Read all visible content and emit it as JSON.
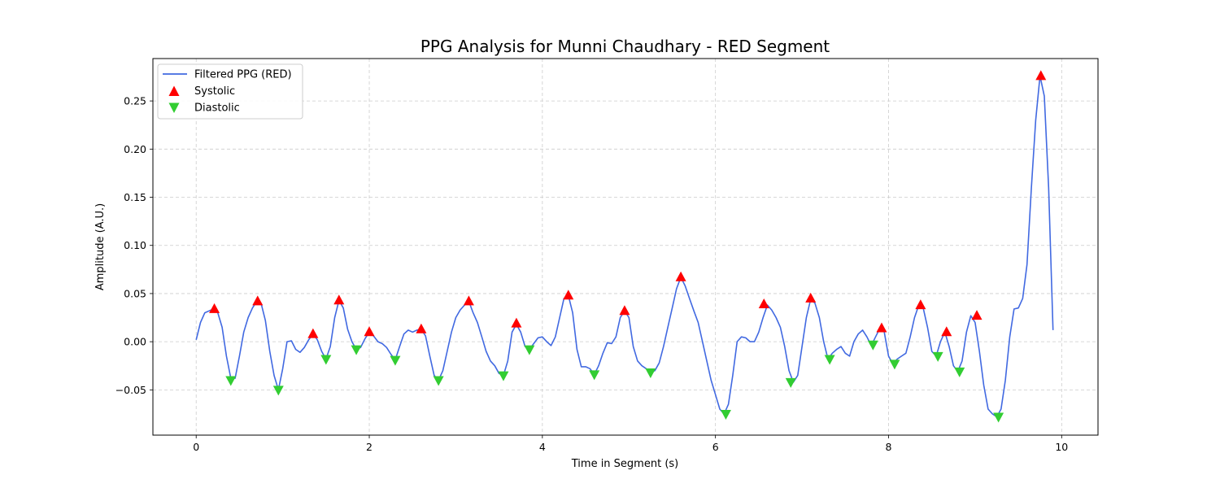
{
  "chart_data": {
    "type": "line",
    "title": "PPG Analysis for Munni Chaudhary - RED Segment",
    "xlabel": "Time in Segment (s)",
    "ylabel": "Amplitude (A.U.)",
    "xlim": [
      -0.5,
      10.42
    ],
    "ylim": [
      -0.097,
      0.294
    ],
    "grid": true,
    "legend_position": "top-left",
    "x_ticks": [
      0,
      2,
      4,
      6,
      8,
      10
    ],
    "x_tick_labels": [
      "0",
      "2",
      "4",
      "6",
      "8",
      "10"
    ],
    "y_ticks": [
      -0.05,
      0.0,
      0.05,
      0.1,
      0.15,
      0.2,
      0.25
    ],
    "y_tick_labels": [
      "−0.05",
      "0.00",
      "0.05",
      "0.10",
      "0.15",
      "0.20",
      "0.25"
    ],
    "colors": {
      "line": "#4169e1",
      "systolic": "#ff0000",
      "diastolic": "#32cd32",
      "grid": "#cccccc"
    },
    "series": [
      {
        "name": "Filtered PPG (RED)",
        "kind": "line",
        "x": [
          0.0,
          0.05,
          0.1,
          0.15,
          0.2,
          0.25,
          0.3,
          0.35,
          0.4,
          0.45,
          0.5,
          0.55,
          0.6,
          0.65,
          0.7,
          0.75,
          0.8,
          0.85,
          0.9,
          0.95,
          1.0,
          1.05,
          1.1,
          1.15,
          1.2,
          1.25,
          1.3,
          1.35,
          1.4,
          1.45,
          1.5,
          1.55,
          1.6,
          1.65,
          1.7,
          1.75,
          1.8,
          1.85,
          1.9,
          1.95,
          2.0,
          2.05,
          2.1,
          2.15,
          2.2,
          2.25,
          2.3,
          2.35,
          2.4,
          2.45,
          2.5,
          2.55,
          2.6,
          2.65,
          2.7,
          2.75,
          2.8,
          2.85,
          2.9,
          2.95,
          3.0,
          3.05,
          3.1,
          3.15,
          3.2,
          3.25,
          3.3,
          3.35,
          3.4,
          3.45,
          3.5,
          3.55,
          3.6,
          3.65,
          3.7,
          3.75,
          3.8,
          3.85,
          3.9,
          3.95,
          4.0,
          4.05,
          4.1,
          4.15,
          4.2,
          4.25,
          4.3,
          4.35,
          4.4,
          4.45,
          4.5,
          4.55,
          4.6,
          4.65,
          4.7,
          4.75,
          4.8,
          4.85,
          4.9,
          4.95,
          5.0,
          5.05,
          5.1,
          5.15,
          5.2,
          5.25,
          5.3,
          5.35,
          5.4,
          5.45,
          5.5,
          5.55,
          5.6,
          5.65,
          5.7,
          5.75,
          5.8,
          5.85,
          5.9,
          5.95,
          6.0,
          6.05,
          6.1,
          6.15,
          6.2,
          6.25,
          6.3,
          6.35,
          6.4,
          6.45,
          6.5,
          6.55,
          6.6,
          6.65,
          6.7,
          6.75,
          6.8,
          6.85,
          6.9,
          6.95,
          7.0,
          7.05,
          7.1,
          7.15,
          7.2,
          7.25,
          7.3,
          7.35,
          7.4,
          7.45,
          7.5,
          7.55,
          7.6,
          7.65,
          7.7,
          7.75,
          7.8,
          7.85,
          7.9,
          7.95,
          8.0,
          8.05,
          8.1,
          8.15,
          8.2,
          8.25,
          8.3,
          8.35,
          8.4,
          8.45,
          8.5,
          8.55,
          8.6,
          8.65,
          8.7,
          8.75,
          8.8,
          8.85,
          8.9,
          8.95,
          9.0,
          9.05,
          9.1,
          9.15,
          9.2,
          9.25,
          9.3,
          9.35,
          9.4,
          9.45,
          9.5,
          9.55,
          9.6,
          9.65,
          9.7,
          9.75,
          9.8,
          9.85,
          9.9
        ],
        "y": [
          0.002,
          0.02,
          0.03,
          0.032,
          0.034,
          0.03,
          0.015,
          -0.015,
          -0.038,
          -0.038,
          -0.015,
          0.01,
          0.025,
          0.035,
          0.042,
          0.04,
          0.022,
          -0.01,
          -0.035,
          -0.05,
          -0.028,
          0.0,
          0.001,
          -0.008,
          -0.011,
          -0.006,
          0.002,
          0.008,
          0.002,
          -0.01,
          -0.018,
          -0.005,
          0.025,
          0.043,
          0.035,
          0.013,
          0.0,
          -0.008,
          -0.006,
          0.003,
          0.01,
          0.006,
          0.0,
          -0.002,
          -0.006,
          -0.013,
          -0.019,
          -0.005,
          0.008,
          0.012,
          0.01,
          0.012,
          0.013,
          0.006,
          -0.015,
          -0.035,
          -0.04,
          -0.03,
          -0.01,
          0.01,
          0.025,
          0.033,
          0.038,
          0.042,
          0.03,
          0.02,
          0.005,
          -0.01,
          -0.02,
          -0.025,
          -0.033,
          -0.035,
          -0.02,
          0.01,
          0.018,
          0.01,
          -0.005,
          -0.008,
          -0.002,
          0.004,
          0.005,
          0.0,
          -0.004,
          0.005,
          0.025,
          0.045,
          0.048,
          0.03,
          -0.008,
          -0.026,
          -0.026,
          -0.028,
          -0.034,
          -0.025,
          -0.012,
          -0.001,
          -0.002,
          0.005,
          0.025,
          0.032,
          0.025,
          -0.005,
          -0.02,
          -0.025,
          -0.028,
          -0.032,
          -0.03,
          -0.022,
          -0.005,
          0.015,
          0.035,
          0.055,
          0.067,
          0.058,
          0.045,
          0.032,
          0.02,
          0.0,
          -0.02,
          -0.04,
          -0.055,
          -0.07,
          -0.075,
          -0.065,
          -0.035,
          0.0,
          0.005,
          0.004,
          0.0,
          0.0,
          0.01,
          0.025,
          0.038,
          0.033,
          0.025,
          0.015,
          -0.005,
          -0.03,
          -0.042,
          -0.035,
          -0.005,
          0.025,
          0.044,
          0.04,
          0.025,
          0.0,
          -0.018,
          -0.012,
          -0.008,
          -0.005,
          -0.012,
          -0.015,
          0.0,
          0.008,
          0.012,
          0.005,
          -0.004,
          0.005,
          0.014,
          0.01,
          -0.015,
          -0.023,
          -0.018,
          -0.015,
          -0.012,
          0.005,
          0.025,
          0.038,
          0.035,
          0.015,
          -0.01,
          -0.015,
          0.0,
          0.01,
          -0.005,
          -0.025,
          -0.031,
          -0.02,
          0.01,
          0.027,
          0.02,
          -0.01,
          -0.045,
          -0.07,
          -0.075,
          -0.078,
          -0.07,
          -0.04,
          0.005,
          0.034,
          0.035,
          0.045,
          0.08,
          0.16,
          0.23,
          0.276,
          0.255,
          0.16,
          0.012
        ]
      },
      {
        "name": "Systolic",
        "kind": "marker-up",
        "x": [
          0.21,
          0.71,
          1.35,
          1.65,
          2.0,
          2.6,
          3.15,
          3.7,
          4.3,
          4.95,
          5.6,
          6.56,
          7.1,
          7.92,
          8.37,
          8.67,
          9.02,
          9.76
        ],
        "y": [
          0.034,
          0.042,
          0.008,
          0.043,
          0.01,
          0.013,
          0.042,
          0.019,
          0.048,
          0.032,
          0.067,
          0.039,
          0.045,
          0.014,
          0.038,
          0.01,
          0.027,
          0.276
        ]
      },
      {
        "name": "Diastolic",
        "kind": "marker-down",
        "x": [
          0.4,
          0.95,
          1.5,
          1.85,
          2.3,
          2.8,
          3.55,
          3.85,
          4.6,
          5.25,
          6.12,
          6.87,
          7.32,
          7.82,
          8.07,
          8.57,
          8.82,
          9.27
        ],
        "y": [
          -0.04,
          -0.05,
          -0.018,
          -0.008,
          -0.019,
          -0.04,
          -0.035,
          -0.008,
          -0.034,
          -0.032,
          -0.075,
          -0.042,
          -0.018,
          -0.003,
          -0.023,
          -0.015,
          -0.031,
          -0.078
        ]
      }
    ]
  }
}
